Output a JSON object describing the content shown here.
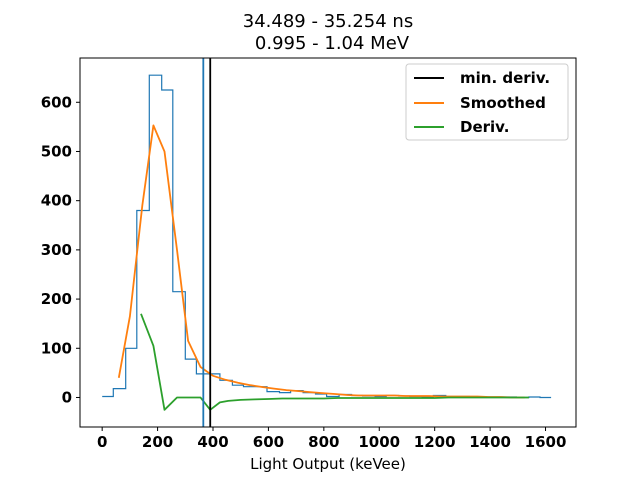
{
  "chart_data": {
    "type": "line",
    "title_line1": "34.489 - 35.254 ns",
    "title_line2": "0.995 - 1.04 MeV",
    "xlabel": "Light Output (keVee)",
    "ylabel": "",
    "xlim": [
      -80,
      1710
    ],
    "ylim": [
      -60,
      690
    ],
    "xticks": [
      0,
      200,
      400,
      600,
      800,
      1000,
      1200,
      1400,
      1600
    ],
    "yticks": [
      0,
      100,
      200,
      300,
      400,
      500,
      600
    ],
    "legend_position": "top-right",
    "histogram": {
      "color": "#1f77b4",
      "edges": [
        0,
        40,
        85,
        125,
        170,
        215,
        255,
        300,
        340,
        380,
        425,
        470,
        510,
        555,
        595,
        640,
        680,
        725,
        770,
        810,
        855,
        900,
        940,
        985,
        1025,
        1070,
        1110,
        1155,
        1195,
        1240,
        1285,
        1325,
        1370,
        1410,
        1455,
        1495,
        1540,
        1580,
        1620
      ],
      "counts": [
        2,
        18,
        100,
        380,
        655,
        625,
        215,
        78,
        48,
        48,
        35,
        25,
        22,
        22,
        12,
        10,
        14,
        10,
        7,
        2,
        6,
        4,
        3,
        2,
        4,
        3,
        2,
        1,
        4,
        2,
        2,
        1,
        1,
        1,
        1,
        0,
        1,
        0
      ]
    },
    "series": [
      {
        "name": "Smoothed",
        "color": "#ff7f0e",
        "x": [
          60,
          100,
          145,
          185,
          225,
          270,
          310,
          355,
          400,
          445,
          490,
          535,
          580,
          620,
          665,
          710,
          750,
          795,
          840,
          885,
          925,
          970,
          1010,
          1055,
          1095,
          1140,
          1180,
          1225,
          1270,
          1310,
          1355,
          1395,
          1440,
          1480,
          1525
        ],
        "y": [
          40,
          165,
          390,
          553,
          500,
          300,
          115,
          62,
          44,
          36,
          30,
          25,
          21,
          18,
          15,
          13,
          11,
          9,
          7,
          5,
          4,
          4,
          4,
          4,
          3,
          3,
          3,
          2,
          2,
          2,
          2,
          1,
          1,
          0,
          0
        ]
      },
      {
        "name": "Deriv.",
        "color": "#2ca02c",
        "x": [
          140,
          185,
          225,
          270,
          310,
          355,
          390,
          425,
          455,
          500,
          550,
          600,
          650,
          700,
          750,
          800,
          850,
          900,
          950,
          1000,
          1050,
          1100,
          1150,
          1200,
          1250,
          1300,
          1350,
          1400,
          1450,
          1500,
          1540
        ],
        "y": [
          170,
          105,
          -25,
          0,
          0,
          0,
          -25,
          -10,
          -7,
          -5,
          -4,
          -3,
          -2,
          -2,
          -2,
          -2,
          -1,
          -1,
          -1,
          -1,
          -1,
          -1,
          -1,
          -1,
          0,
          0,
          0,
          0,
          0,
          0,
          0
        ]
      }
    ],
    "vlines": [
      {
        "x": 365,
        "color": "#1f77b4"
      },
      {
        "x": 390,
        "color": "#000000",
        "name": "min. deriv."
      }
    ],
    "legend": [
      {
        "label": "min. deriv.",
        "color": "#000000"
      },
      {
        "label": "Smoothed",
        "color": "#ff7f0e"
      },
      {
        "label": "Deriv.",
        "color": "#2ca02c"
      }
    ]
  }
}
